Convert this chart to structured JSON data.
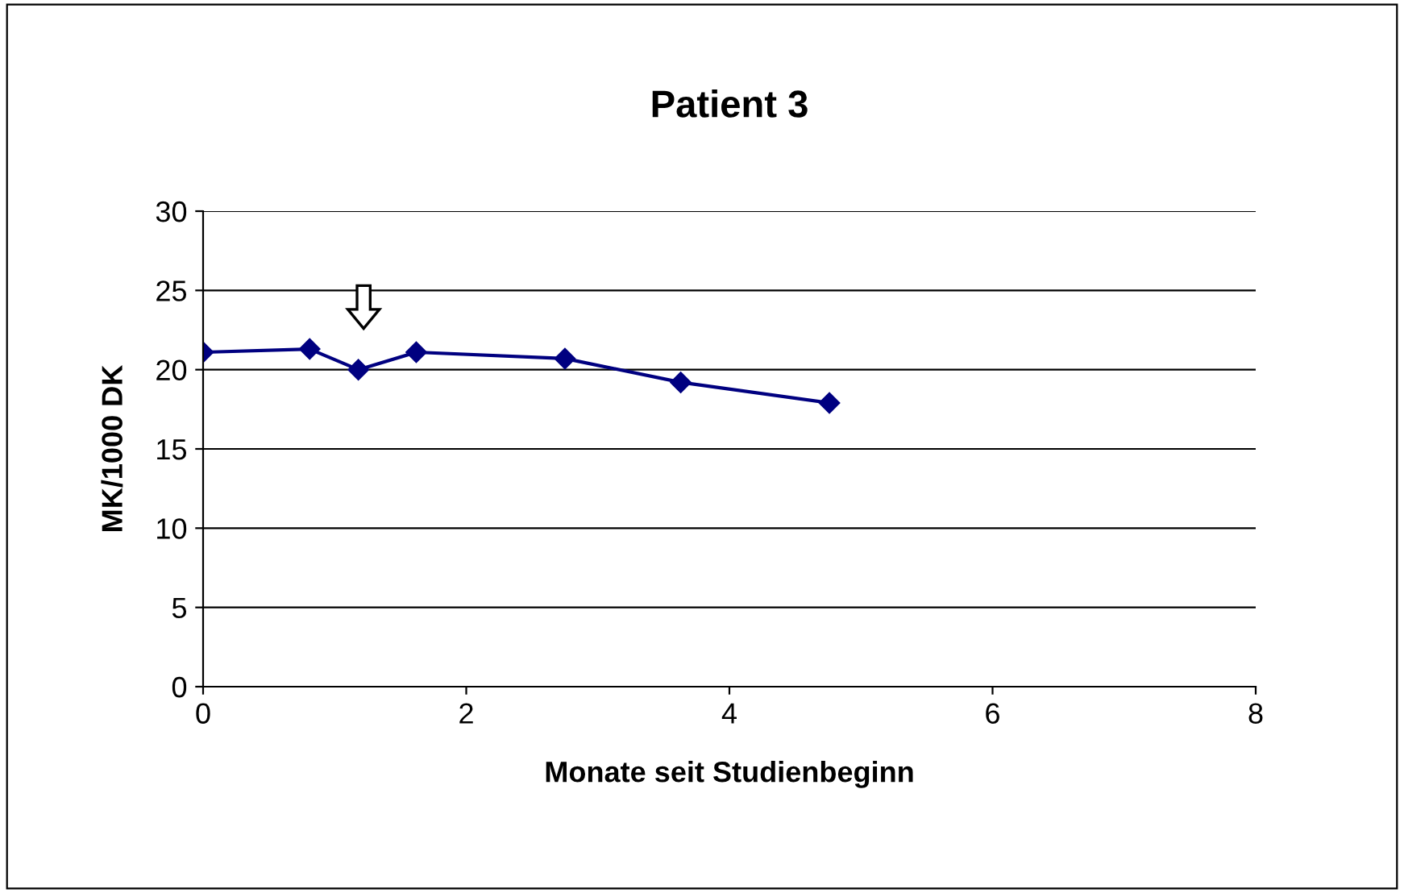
{
  "chart_data": {
    "type": "line",
    "title": "Patient 3",
    "xlabel": "Monate seit Studienbeginn",
    "ylabel": "MK/1000 DK",
    "x": [
      0,
      0.81,
      1.18,
      1.62,
      2.75,
      3.63,
      4.76
    ],
    "series": [
      {
        "color": "#000080",
        "values": [
          21.1,
          21.3,
          20.0,
          21.1,
          20.7,
          19.2,
          17.9
        ]
      }
    ],
    "xlim": [
      0,
      8
    ],
    "xticks": [
      0,
      2,
      4,
      6,
      8
    ],
    "ylim": [
      0,
      30
    ],
    "yticks": [
      0,
      5,
      10,
      15,
      20,
      25,
      30
    ],
    "grid": "y",
    "marker": "diamond",
    "line_style": "solid",
    "legend": false
  }
}
